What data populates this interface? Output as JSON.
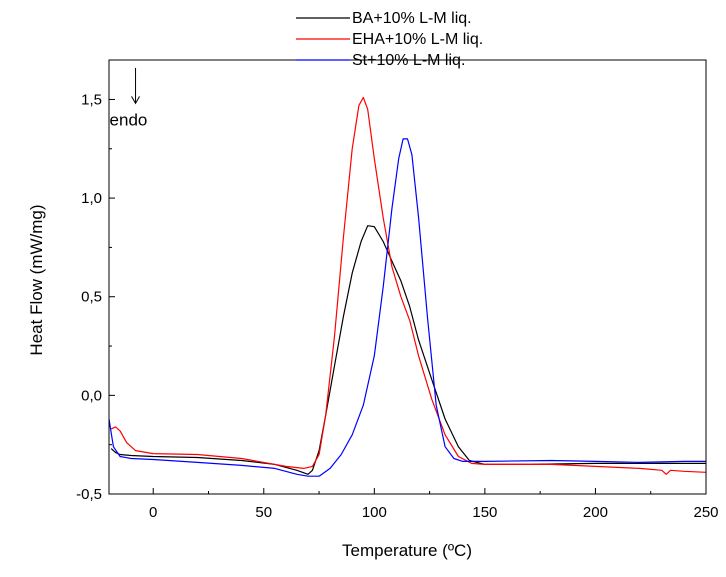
{
  "chart_data": {
    "type": "line",
    "title": "",
    "xlabel": "Temperature (ºC)",
    "ylabel": "Heat Flow (mW/mg)",
    "xlim": [
      -20,
      250
    ],
    "ylim": [
      -0.5,
      1.7
    ],
    "x_ticks": [
      {
        "value": 0,
        "label": "0"
      },
      {
        "value": 50,
        "label": "50"
      },
      {
        "value": 100,
        "label": "100"
      },
      {
        "value": 150,
        "label": "150"
      },
      {
        "value": 200,
        "label": "200"
      },
      {
        "value": 250,
        "label": "250"
      }
    ],
    "y_ticks": [
      {
        "value": -0.5,
        "label": "-0,5"
      },
      {
        "value": 0.0,
        "label": "0,0"
      },
      {
        "value": 0.5,
        "label": "0,5"
      },
      {
        "value": 1.0,
        "label": "1,0"
      },
      {
        "value": 1.5,
        "label": "1,5"
      }
    ],
    "grid": false,
    "legend_position": "top-center",
    "annotation": {
      "text": "endo",
      "arrow": "down",
      "x": -8,
      "y": 1.66,
      "y_end": 1.48
    },
    "series": [
      {
        "name": "BA+10% L-M liq.",
        "color": "#000000",
        "points": [
          [
            -19,
            -0.27
          ],
          [
            -17,
            -0.29
          ],
          [
            -15,
            -0.3
          ],
          [
            -10,
            -0.305
          ],
          [
            0,
            -0.31
          ],
          [
            20,
            -0.315
          ],
          [
            40,
            -0.33
          ],
          [
            55,
            -0.35
          ],
          [
            65,
            -0.38
          ],
          [
            70,
            -0.4
          ],
          [
            72,
            -0.38
          ],
          [
            75,
            -0.28
          ],
          [
            78,
            -0.1
          ],
          [
            82,
            0.15
          ],
          [
            86,
            0.4
          ],
          [
            90,
            0.62
          ],
          [
            94,
            0.78
          ],
          [
            97,
            0.86
          ],
          [
            100,
            0.855
          ],
          [
            104,
            0.78
          ],
          [
            108,
            0.68
          ],
          [
            112,
            0.58
          ],
          [
            116,
            0.45
          ],
          [
            120,
            0.28
          ],
          [
            126,
            0.08
          ],
          [
            132,
            -0.12
          ],
          [
            138,
            -0.26
          ],
          [
            143,
            -0.33
          ],
          [
            150,
            -0.35
          ],
          [
            170,
            -0.35
          ],
          [
            200,
            -0.345
          ],
          [
            220,
            -0.345
          ],
          [
            250,
            -0.345
          ]
        ]
      },
      {
        "name": "EHA+10% L-M liq.",
        "color": "#ff0000",
        "points": [
          [
            -19,
            -0.17
          ],
          [
            -17,
            -0.16
          ],
          [
            -15,
            -0.18
          ],
          [
            -12,
            -0.24
          ],
          [
            -8,
            -0.28
          ],
          [
            0,
            -0.295
          ],
          [
            20,
            -0.3
          ],
          [
            40,
            -0.32
          ],
          [
            60,
            -0.36
          ],
          [
            68,
            -0.37
          ],
          [
            72,
            -0.36
          ],
          [
            75,
            -0.3
          ],
          [
            78,
            -0.1
          ],
          [
            82,
            0.3
          ],
          [
            86,
            0.8
          ],
          [
            90,
            1.25
          ],
          [
            93,
            1.47
          ],
          [
            95,
            1.51
          ],
          [
            97,
            1.45
          ],
          [
            100,
            1.2
          ],
          [
            104,
            0.9
          ],
          [
            108,
            0.65
          ],
          [
            112,
            0.5
          ],
          [
            116,
            0.38
          ],
          [
            120,
            0.2
          ],
          [
            126,
            -0.02
          ],
          [
            132,
            -0.2
          ],
          [
            138,
            -0.31
          ],
          [
            144,
            -0.345
          ],
          [
            150,
            -0.35
          ],
          [
            180,
            -0.35
          ],
          [
            200,
            -0.36
          ],
          [
            220,
            -0.37
          ],
          [
            230,
            -0.38
          ],
          [
            232,
            -0.4
          ],
          [
            234,
            -0.38
          ],
          [
            240,
            -0.385
          ],
          [
            250,
            -0.39
          ]
        ]
      },
      {
        "name": "St+10% L-M liq.",
        "color": "#0000ff",
        "points": [
          [
            -20,
            -0.12
          ],
          [
            -18,
            -0.26
          ],
          [
            -15,
            -0.31
          ],
          [
            -10,
            -0.32
          ],
          [
            0,
            -0.325
          ],
          [
            20,
            -0.34
          ],
          [
            40,
            -0.355
          ],
          [
            55,
            -0.37
          ],
          [
            65,
            -0.4
          ],
          [
            70,
            -0.41
          ],
          [
            75,
            -0.41
          ],
          [
            80,
            -0.37
          ],
          [
            85,
            -0.3
          ],
          [
            90,
            -0.2
          ],
          [
            95,
            -0.05
          ],
          [
            100,
            0.2
          ],
          [
            104,
            0.55
          ],
          [
            108,
            0.95
          ],
          [
            111,
            1.2
          ],
          [
            113,
            1.3
          ],
          [
            115,
            1.3
          ],
          [
            117,
            1.22
          ],
          [
            120,
            0.9
          ],
          [
            124,
            0.4
          ],
          [
            128,
            -0.05
          ],
          [
            132,
            -0.26
          ],
          [
            136,
            -0.32
          ],
          [
            140,
            -0.335
          ],
          [
            150,
            -0.335
          ],
          [
            180,
            -0.33
          ],
          [
            200,
            -0.335
          ],
          [
            220,
            -0.34
          ],
          [
            240,
            -0.335
          ],
          [
            250,
            -0.335
          ]
        ]
      }
    ]
  }
}
